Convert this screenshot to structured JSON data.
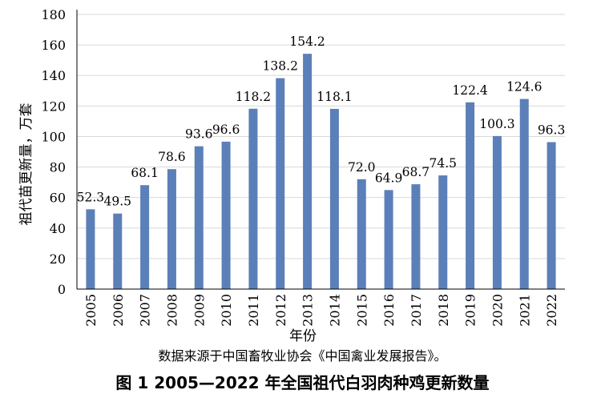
{
  "chart_data": {
    "type": "bar",
    "categories": [
      "2005",
      "2006",
      "2007",
      "2008",
      "2009",
      "2010",
      "2011",
      "2012",
      "2013",
      "2014",
      "2015",
      "2016",
      "2017",
      "2018",
      "2019",
      "2020",
      "2021",
      "2022"
    ],
    "values": [
      52.3,
      49.5,
      68.1,
      78.6,
      93.6,
      96.6,
      118.2,
      138.2,
      154.2,
      118.1,
      72.0,
      64.9,
      68.7,
      74.5,
      122.4,
      100.3,
      124.6,
      96.3
    ],
    "data_labels": [
      "52.3",
      "49.5",
      "68.1",
      "78.6",
      "93.6",
      "96.6",
      "118.2",
      "138.2",
      "154.2",
      "118.1",
      "72.0",
      "64.9",
      "68.7",
      "74.5",
      "122.4",
      "100.3",
      "124.6",
      "96.3"
    ],
    "yticks": [
      "0",
      "20",
      "40",
      "60",
      "80",
      "100",
      "120",
      "140",
      "160",
      "180"
    ],
    "xlabel": "年份",
    "ylabel": "祖代苗更新量，万套",
    "ylim": [
      0,
      180
    ],
    "grid": true,
    "bar_color": "#5b7fb8"
  },
  "source_note": "数据来源于中国畜牧业协会《中国禽业发展报告》。",
  "caption": "图 1 2005—2022 年全国祖代白羽肉种鸡更新数量"
}
